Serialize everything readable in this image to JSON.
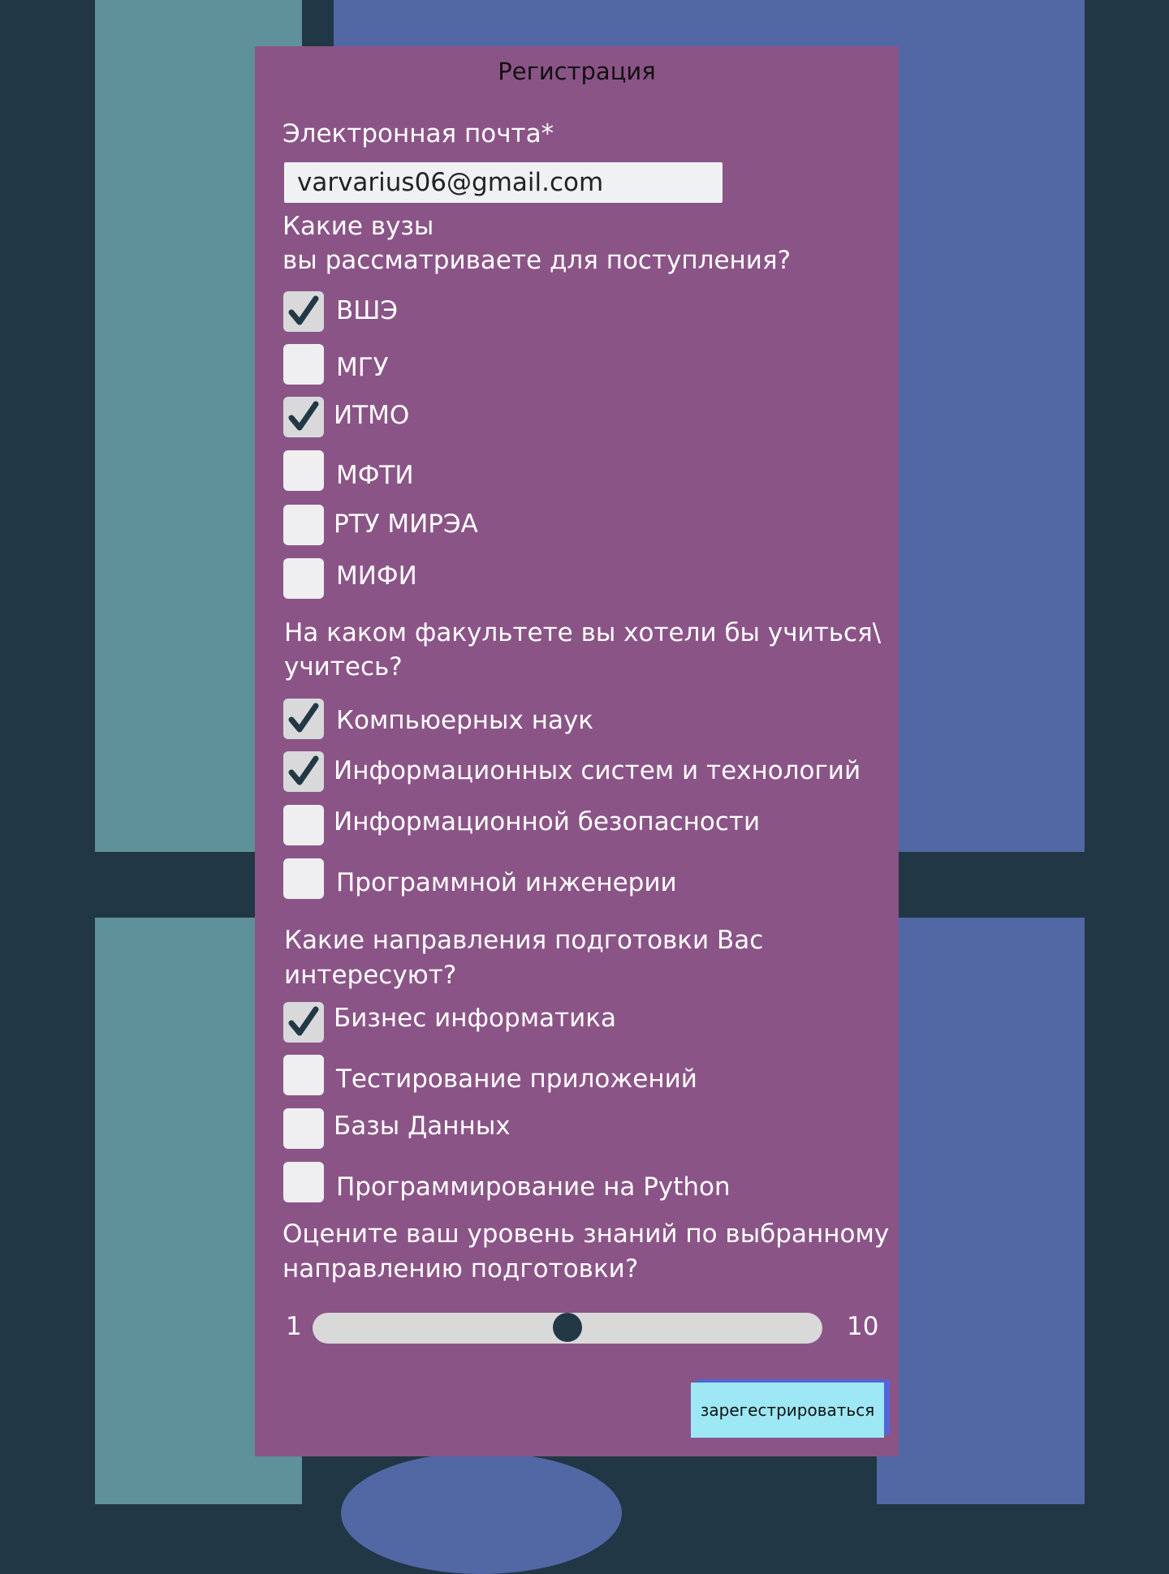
{
  "colors": {
    "page_bg": "#213745",
    "teal_panel": "#5e9199",
    "blue_panel": "#5168a5",
    "form_bg": "#8b5487",
    "checkbox_bg": "#efeff1",
    "checkmark": "#223845",
    "button_bg": "#9de8f4",
    "button_shadow": "#5166d8"
  },
  "form": {
    "title": "Регистрация",
    "email": {
      "label": "Электронная почта*",
      "value": "varvarius06@gmail.com"
    },
    "universities": {
      "question_line1": "Какие вузы",
      "question_line2": "вы рассматриваете для поступления?",
      "options": [
        {
          "label": "ВШЭ",
          "checked": true
        },
        {
          "label": "МГУ",
          "checked": false
        },
        {
          "label": "ИТМО",
          "checked": true
        },
        {
          "label": "МФТИ",
          "checked": false
        },
        {
          "label": "РТУ МИРЭА",
          "checked": false
        },
        {
          "label": "МИФИ",
          "checked": false
        }
      ]
    },
    "faculties": {
      "question_line1": "На каком факультете вы хотели бы учиться\\",
      "question_line2": "учитесь?",
      "options": [
        {
          "label": "Компьюерных наук",
          "checked": true
        },
        {
          "label": "Информационных систем и технологий",
          "checked": true
        },
        {
          "label": "Информационной безопасности",
          "checked": false
        },
        {
          "label": "Программной инженерии",
          "checked": false
        }
      ]
    },
    "directions": {
      "question_line1": "Какие направления подготовки Вас",
      "question_line2": "интересуют?",
      "options": [
        {
          "label": "Бизнес информатика",
          "checked": true
        },
        {
          "label": "Тестирование приложений",
          "checked": false
        },
        {
          "label": "Базы Данных",
          "checked": false
        },
        {
          "label": "Программирование на Python",
          "checked": false
        }
      ]
    },
    "knowledge": {
      "question_line1": "Оцените ваш уровень знаний по выбранному",
      "question_line2": "направлению подготовки?",
      "min_label": "1",
      "max_label": "10",
      "min": 1,
      "max": 10,
      "value": 5.5
    },
    "submit_label": "зарегестрироваться"
  }
}
